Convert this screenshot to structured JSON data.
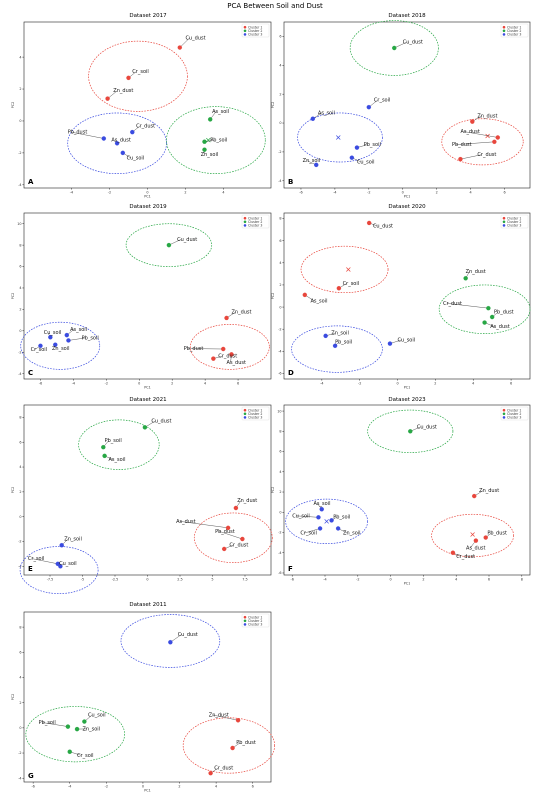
{
  "figure_title": "PCA Between Soil and Dust",
  "colors": {
    "cluster_1": "#e8463c",
    "cluster_2": "#27a744",
    "cluster_3": "#3a4be0"
  },
  "legend": [
    "Cluster 1",
    "Cluster 2",
    "Cluster 3"
  ],
  "chart_data": [
    {
      "type": "scatter",
      "title": "Dataset 2017",
      "panel_letter": "A",
      "xlabel": "PC1",
      "ylabel": "PC2",
      "xlim": [
        -6.5,
        6.5
      ],
      "ylim": [
        -4.2,
        6.2
      ],
      "xticks": [
        -4,
        -2,
        0,
        2,
        4
      ],
      "yticks": [
        -4,
        -2,
        0,
        2,
        4
      ],
      "legend_position": "top-right",
      "circles": [
        {
          "cluster": 1,
          "cx": -0.5,
          "cy": 2.8,
          "rx": 2.6,
          "ry": 2.2
        },
        {
          "cluster": 3,
          "cx": -1.6,
          "cy": -1.4,
          "rx": 2.6,
          "ry": 1.9
        },
        {
          "cluster": 2,
          "cx": 3.6,
          "cy": -1.2,
          "rx": 2.6,
          "ry": 2.1
        }
      ],
      "centroids": [
        {
          "cluster": 2,
          "x": 3.2,
          "y": -1.2
        }
      ],
      "points": [
        {
          "label": "Cu_dust",
          "x": 1.7,
          "y": 4.6,
          "cluster": 1,
          "lx": 2.0,
          "ly": 5.1
        },
        {
          "label": "Cr_soil",
          "x": -1.0,
          "y": 2.7,
          "cluster": 1,
          "lx": -0.8,
          "ly": 3.0
        },
        {
          "label": "Zn_dust",
          "x": -2.1,
          "y": 1.4,
          "cluster": 1,
          "lx": -1.8,
          "ly": 1.8
        },
        {
          "label": "Cr_dust",
          "x": -0.8,
          "y": -0.7,
          "cluster": 3,
          "lx": -0.6,
          "ly": -0.4
        },
        {
          "label": "Pb_dust",
          "x": -2.3,
          "y": -1.1,
          "cluster": 3,
          "lx": -4.2,
          "ly": -0.8
        },
        {
          "label": "As_dust",
          "x": -1.6,
          "y": -1.4,
          "cluster": 3,
          "lx": -1.9,
          "ly": -1.3
        },
        {
          "label": "Cu_soil",
          "x": -1.3,
          "y": -2.0,
          "cluster": 3,
          "lx": -1.1,
          "ly": -2.4
        },
        {
          "label": "As_soil",
          "x": 3.3,
          "y": 0.1,
          "cluster": 2,
          "lx": 3.4,
          "ly": 0.5
        },
        {
          "label": "Pb_soil",
          "x": 3.0,
          "y": -1.3,
          "cluster": 2,
          "lx": 3.3,
          "ly": -1.3
        },
        {
          "label": "Zn_soil",
          "x": 3.0,
          "y": -1.8,
          "cluster": 2,
          "lx": 2.8,
          "ly": -2.2
        }
      ]
    },
    {
      "type": "scatter",
      "title": "Dataset 2018",
      "panel_letter": "B",
      "xlabel": "PC1",
      "ylabel": "PC2",
      "xlim": [
        -7,
        7.5
      ],
      "ylim": [
        -4.5,
        7.0
      ],
      "xticks": [
        -6,
        -4,
        -2,
        0,
        2,
        4,
        6
      ],
      "yticks": [
        -4,
        -2,
        0,
        2,
        4,
        6
      ],
      "legend_position": "top-right",
      "circles": [
        {
          "cluster": 2,
          "cx": -0.5,
          "cy": 5.2,
          "rx": 2.6,
          "ry": 1.9
        },
        {
          "cluster": 3,
          "cx": -3.7,
          "cy": -1.0,
          "rx": 2.5,
          "ry": 1.7
        },
        {
          "cluster": 1,
          "cx": 4.7,
          "cy": -1.3,
          "rx": 2.4,
          "ry": 1.6
        }
      ],
      "centroids": [
        {
          "cluster": 3,
          "x": -3.8,
          "y": -1.0
        },
        {
          "cluster": 1,
          "x": 5.0,
          "y": -0.9
        }
      ],
      "points": [
        {
          "label": "Cu_dust",
          "x": -0.5,
          "y": 5.2,
          "cluster": 2,
          "lx": 0.0,
          "ly": 5.5
        },
        {
          "label": "Cr_soil",
          "x": -2.0,
          "y": 1.1,
          "cluster": 3,
          "lx": -1.7,
          "ly": 1.5
        },
        {
          "label": "As_soil",
          "x": -5.3,
          "y": 0.3,
          "cluster": 3,
          "lx": -5.0,
          "ly": 0.6
        },
        {
          "label": "Pb_soil",
          "x": -2.7,
          "y": -1.7,
          "cluster": 3,
          "lx": -2.3,
          "ly": -1.6
        },
        {
          "label": "Zn_soil",
          "x": -5.1,
          "y": -2.9,
          "cluster": 3,
          "lx": -5.9,
          "ly": -2.7
        },
        {
          "label": "Cu_soil",
          "x": -3.0,
          "y": -2.4,
          "cluster": 3,
          "lx": -2.7,
          "ly": -2.8
        },
        {
          "label": "Zn_dust",
          "x": 4.1,
          "y": 0.1,
          "cluster": 1,
          "lx": 4.4,
          "ly": 0.4
        },
        {
          "label": "As_dust",
          "x": 5.6,
          "y": -1.0,
          "cluster": 1,
          "lx": 3.4,
          "ly": -0.7
        },
        {
          "label": "Pb_dust",
          "x": 5.4,
          "y": -1.3,
          "cluster": 1,
          "lx": 2.9,
          "ly": -1.6
        },
        {
          "label": "Cr_dust",
          "x": 3.4,
          "y": -2.5,
          "cluster": 1,
          "lx": 4.4,
          "ly": -2.3
        }
      ]
    },
    {
      "type": "scatter",
      "title": "Dataset 2019",
      "panel_letter": "C",
      "xlabel": "PC1",
      "ylabel": "PC2",
      "xlim": [
        -7,
        8
      ],
      "ylim": [
        -4.5,
        11.0
      ],
      "xticks": [
        -6,
        -4,
        -2,
        0,
        2,
        4,
        6
      ],
      "yticks": [
        -4,
        -2,
        0,
        2,
        4,
        6,
        8,
        10
      ],
      "legend_position": "top-right",
      "circles": [
        {
          "cluster": 2,
          "cx": 1.8,
          "cy": 8.0,
          "rx": 2.6,
          "ry": 2.0
        },
        {
          "cluster": 3,
          "cx": -4.8,
          "cy": -1.4,
          "rx": 2.4,
          "ry": 2.2
        },
        {
          "cluster": 1,
          "cx": 5.5,
          "cy": -1.5,
          "rx": 2.4,
          "ry": 2.1
        }
      ],
      "centroids": [],
      "points": [
        {
          "label": "Cu_dust",
          "x": 1.8,
          "y": 8.0,
          "cluster": 2,
          "lx": 2.3,
          "ly": 8.4
        },
        {
          "label": "Zn_dust",
          "x": 5.3,
          "y": 1.2,
          "cluster": 1,
          "lx": 5.6,
          "ly": 1.6
        },
        {
          "label": "Pb_dust",
          "x": 5.1,
          "y": -1.7,
          "cluster": 1,
          "lx": 2.7,
          "ly": -1.8
        },
        {
          "label": "As_dust",
          "x": 5.6,
          "y": -2.2,
          "cluster": 1,
          "lx": 5.3,
          "ly": -3.1
        },
        {
          "label": "Cr_dust",
          "x": 4.5,
          "y": -2.6,
          "cluster": 1,
          "lx": 4.8,
          "ly": -2.5
        },
        {
          "label": "As_soil",
          "x": -4.4,
          "y": -0.4,
          "cluster": 3,
          "lx": -4.2,
          "ly": 0.0
        },
        {
          "label": "Cu_soil",
          "x": -5.4,
          "y": -0.6,
          "cluster": 3,
          "lx": -5.8,
          "ly": -0.3
        },
        {
          "label": "Pb_soil",
          "x": -4.3,
          "y": -0.9,
          "cluster": 3,
          "lx": -3.5,
          "ly": -0.8
        },
        {
          "label": "Cr_soil",
          "x": -6.0,
          "y": -1.4,
          "cluster": 3,
          "lx": -6.6,
          "ly": -1.9
        },
        {
          "label": "Zn_soil",
          "x": -5.1,
          "y": -1.3,
          "cluster": 3,
          "lx": -5.3,
          "ly": -1.8
        }
      ]
    },
    {
      "type": "scatter",
      "title": "Dataset 2020",
      "panel_letter": "D",
      "xlabel": "PC1",
      "ylabel": "PC2",
      "xlim": [
        -6,
        7
      ],
      "ylim": [
        -6.5,
        8.5
      ],
      "xticks": [
        -4,
        -2,
        0,
        2,
        4,
        6
      ],
      "yticks": [
        -6,
        -4,
        -2,
        0,
        2,
        4,
        6,
        8
      ],
      "legend_position": "top-right",
      "circles": [
        {
          "cluster": 1,
          "cx": -2.8,
          "cy": 3.4,
          "rx": 2.3,
          "ry": 2.1
        },
        {
          "cluster": 2,
          "cx": 4.6,
          "cy": -0.2,
          "rx": 2.4,
          "ry": 2.2
        },
        {
          "cluster": 3,
          "cx": -3.2,
          "cy": -3.8,
          "rx": 2.4,
          "ry": 2.1
        }
      ],
      "centroids": [
        {
          "cluster": 1,
          "x": -2.6,
          "y": 3.4
        }
      ],
      "points": [
        {
          "label": "Cu_dust",
          "x": -1.5,
          "y": 7.6,
          "cluster": 1,
          "lx": -1.3,
          "ly": 7.2
        },
        {
          "label": "Cr_soil",
          "x": -3.1,
          "y": 1.7,
          "cluster": 1,
          "lx": -2.9,
          "ly": 2.0
        },
        {
          "label": "As_soil",
          "x": -4.9,
          "y": 1.1,
          "cluster": 1,
          "lx": -4.6,
          "ly": 0.4
        },
        {
          "label": "Zn_dust",
          "x": 3.6,
          "y": 2.6,
          "cluster": 2,
          "lx": 3.6,
          "ly": 3.1
        },
        {
          "label": "Cr_dust",
          "x": 4.8,
          "y": -0.1,
          "cluster": 2,
          "lx": 2.4,
          "ly": 0.2
        },
        {
          "label": "Pb_dust",
          "x": 5.0,
          "y": -0.9,
          "cluster": 2,
          "lx": 5.1,
          "ly": -0.6
        },
        {
          "label": "As_dust",
          "x": 4.6,
          "y": -1.4,
          "cluster": 2,
          "lx": 4.9,
          "ly": -1.9
        },
        {
          "label": "Zn_soil",
          "x": -3.8,
          "y": -2.6,
          "cluster": 3,
          "lx": -3.5,
          "ly": -2.5
        },
        {
          "label": "Pb_soil",
          "x": -3.3,
          "y": -3.5,
          "cluster": 3,
          "lx": -3.3,
          "ly": -3.3
        },
        {
          "label": "Cu_soil",
          "x": -0.4,
          "y": -3.3,
          "cluster": 3,
          "lx": 0.0,
          "ly": -3.1
        }
      ]
    },
    {
      "type": "scatter",
      "title": "Dataset 2021",
      "panel_letter": "E",
      "xlabel": "",
      "ylabel": "PC2",
      "xlim": [
        -9.5,
        9.5
      ],
      "ylim": [
        -4.7,
        9.0
      ],
      "xticks": [
        -7.5,
        -5.0,
        -2.5,
        0.0,
        2.5,
        5.0,
        7.5
      ],
      "yticks": [
        -4,
        -2,
        0,
        2,
        4,
        6,
        8
      ],
      "legend_position": "top-right",
      "circles": [
        {
          "cluster": 2,
          "cx": -2.2,
          "cy": 5.8,
          "rx": 3.1,
          "ry": 2.0
        },
        {
          "cluster": 1,
          "cx": 6.6,
          "cy": -1.7,
          "rx": 3.0,
          "ry": 2.0
        },
        {
          "cluster": 3,
          "cx": -6.8,
          "cy": -4.3,
          "rx": 3.0,
          "ry": 1.9
        }
      ],
      "centroids": [],
      "points": [
        {
          "label": "Cu_dust",
          "x": -0.2,
          "y": 7.2,
          "cluster": 2,
          "lx": 0.3,
          "ly": 7.6
        },
        {
          "label": "Pb_soil",
          "x": -3.4,
          "y": 5.6,
          "cluster": 2,
          "lx": -3.3,
          "ly": 6.0
        },
        {
          "label": "As_soil",
          "x": -3.3,
          "y": 4.9,
          "cluster": 2,
          "lx": -3.0,
          "ly": 4.5
        },
        {
          "label": "Zn_dust",
          "x": 6.8,
          "y": 0.7,
          "cluster": 1,
          "lx": 6.9,
          "ly": 1.2
        },
        {
          "label": "As_dust",
          "x": 6.2,
          "y": -0.9,
          "cluster": 1,
          "lx": 2.2,
          "ly": -0.5
        },
        {
          "label": "Pb_dust",
          "x": 7.3,
          "y": -1.8,
          "cluster": 1,
          "lx": 5.2,
          "ly": -1.3
        },
        {
          "label": "Cr_dust",
          "x": 5.9,
          "y": -2.6,
          "cluster": 1,
          "lx": 6.3,
          "ly": -2.4
        },
        {
          "label": "Zn_soil",
          "x": -6.6,
          "y": -2.3,
          "cluster": 3,
          "lx": -6.4,
          "ly": -1.9
        },
        {
          "label": "Cr_soil",
          "x": -6.9,
          "y": -3.8,
          "cluster": 3,
          "lx": -9.2,
          "ly": -3.5
        },
        {
          "label": "Cu_soil",
          "x": -6.7,
          "y": -4.0,
          "cluster": 3,
          "lx": -6.8,
          "ly": -3.9
        }
      ]
    },
    {
      "type": "scatter",
      "title": "Dataset 2023",
      "panel_letter": "F",
      "xlabel": "PC1",
      "ylabel": "PC2",
      "xlim": [
        -6.5,
        8.5
      ],
      "ylim": [
        -6.2,
        10.6
      ],
      "xticks": [
        -6,
        -4,
        -2,
        0,
        2,
        4,
        6,
        8
      ],
      "yticks": [
        -6,
        -4,
        -2,
        0,
        2,
        4,
        6,
        8,
        10
      ],
      "legend_position": "top-right",
      "circles": [
        {
          "cluster": 2,
          "cx": 1.2,
          "cy": 8.0,
          "rx": 2.6,
          "ry": 2.1
        },
        {
          "cluster": 3,
          "cx": -3.9,
          "cy": -0.9,
          "rx": 2.5,
          "ry": 2.2
        },
        {
          "cluster": 1,
          "cx": 5.0,
          "cy": -2.3,
          "rx": 2.5,
          "ry": 2.1
        }
      ],
      "centroids": [
        {
          "cluster": 3,
          "x": -3.9,
          "y": -0.9
        },
        {
          "cluster": 1,
          "x": 5.0,
          "y": -2.2
        }
      ],
      "points": [
        {
          "label": "Cu_dust",
          "x": 1.2,
          "y": 8.0,
          "cluster": 2,
          "lx": 1.6,
          "ly": 8.3
        },
        {
          "label": "Zn_dust",
          "x": 5.1,
          "y": 1.6,
          "cluster": 1,
          "lx": 5.4,
          "ly": 2.0
        },
        {
          "label": "Pb_dust",
          "x": 5.8,
          "y": -2.5,
          "cluster": 1,
          "lx": 5.9,
          "ly": -2.2
        },
        {
          "label": "As_dust",
          "x": 5.2,
          "y": -2.8,
          "cluster": 1,
          "lx": 4.6,
          "ly": -3.7
        },
        {
          "label": "Cr_dust",
          "x": 3.8,
          "y": -4.0,
          "cluster": 1,
          "lx": 4.0,
          "ly": -4.5
        },
        {
          "label": "As_soil",
          "x": -4.2,
          "y": 0.3,
          "cluster": 3,
          "lx": -4.7,
          "ly": 0.7
        },
        {
          "label": "Cu_soil",
          "x": -4.4,
          "y": -0.5,
          "cluster": 3,
          "lx": -6.0,
          "ly": -0.5
        },
        {
          "label": "Pb_soil",
          "x": -3.6,
          "y": -0.8,
          "cluster": 3,
          "lx": -3.5,
          "ly": -0.6
        },
        {
          "label": "Cr_soil",
          "x": -4.3,
          "y": -1.6,
          "cluster": 3,
          "lx": -5.5,
          "ly": -2.2
        },
        {
          "label": "Zn_soil",
          "x": -3.2,
          "y": -1.6,
          "cluster": 3,
          "lx": -2.9,
          "ly": -2.2
        }
      ]
    },
    {
      "type": "scatter",
      "title": "Dataset 2011",
      "panel_letter": "G",
      "xlabel": "PC1",
      "ylabel": "PC2",
      "xlim": [
        -6.5,
        7
      ],
      "ylim": [
        -4.3,
        9.2
      ],
      "xticks": [
        -6,
        -4,
        -2,
        0,
        2,
        4,
        6
      ],
      "yticks": [
        -4,
        -2,
        0,
        2,
        4,
        6,
        8
      ],
      "legend_position": "top-right",
      "circles": [
        {
          "cluster": 3,
          "cx": 1.5,
          "cy": 6.9,
          "rx": 2.7,
          "ry": 2.1
        },
        {
          "cluster": 2,
          "cx": -3.7,
          "cy": -0.5,
          "rx": 2.7,
          "ry": 2.2
        },
        {
          "cluster": 1,
          "cx": 4.7,
          "cy": -1.4,
          "rx": 2.5,
          "ry": 2.2
        }
      ],
      "centroids": [],
      "points": [
        {
          "label": "Cu_dust",
          "x": 1.5,
          "y": 6.8,
          "cluster": 3,
          "lx": 1.9,
          "ly": 7.3
        },
        {
          "label": "Cu_soil",
          "x": -3.2,
          "y": 0.5,
          "cluster": 2,
          "lx": -3.0,
          "ly": 0.9
        },
        {
          "label": "Pb_soil",
          "x": -4.1,
          "y": 0.1,
          "cluster": 2,
          "lx": -5.7,
          "ly": 0.3
        },
        {
          "label": "Zn_soil",
          "x": -3.6,
          "y": -0.1,
          "cluster": 2,
          "lx": -3.3,
          "ly": -0.2
        },
        {
          "label": "Cr_soil",
          "x": -4.0,
          "y": -1.9,
          "cluster": 2,
          "lx": -3.6,
          "ly": -2.3
        },
        {
          "label": "Zn_dust",
          "x": 5.2,
          "y": 0.6,
          "cluster": 1,
          "lx": 3.6,
          "ly": 0.9
        },
        {
          "label": "Pb_dust",
          "x": 4.9,
          "y": -1.6,
          "cluster": 1,
          "lx": 5.1,
          "ly": -1.3
        },
        {
          "label": "Cr_dust",
          "x": 3.7,
          "y": -3.6,
          "cluster": 1,
          "lx": 3.9,
          "ly": -3.3
        }
      ]
    }
  ]
}
